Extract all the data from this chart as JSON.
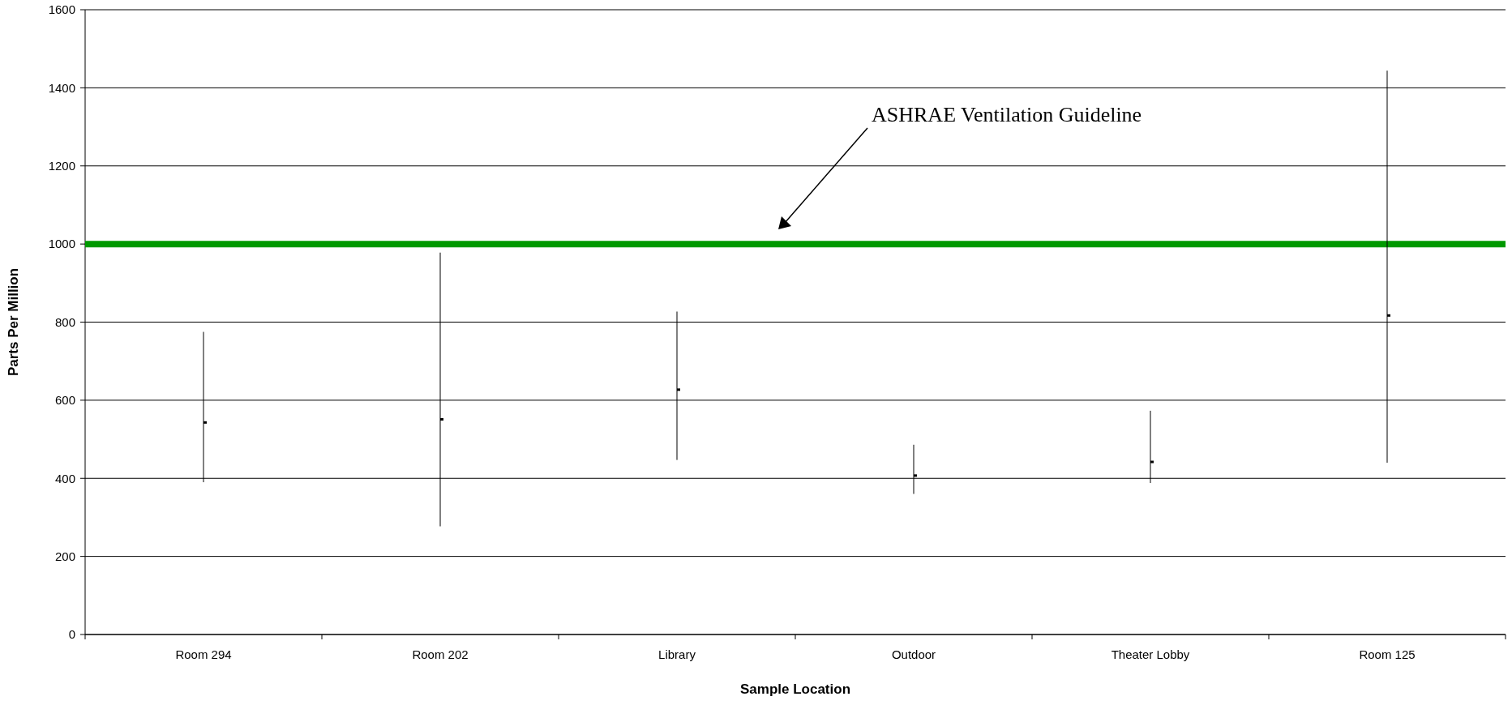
{
  "chart_data": {
    "type": "scatter",
    "xlabel": "Sample Location",
    "ylabel": "Parts Per Million",
    "categories": [
      "Room 294",
      "Room 202",
      "Library",
      "Outdoor",
      "Theater Lobby",
      "Room 125"
    ],
    "values": [
      543,
      551,
      627,
      407,
      442,
      817
    ],
    "errors": [
      [
        390,
        775
      ],
      [
        277,
        978
      ],
      [
        447,
        827
      ],
      [
        360,
        486
      ],
      [
        388,
        573
      ],
      [
        440,
        1444
      ]
    ],
    "color": "#000000",
    "ylim": [
      0,
      1600
    ],
    "yticks": [
      0,
      200,
      400,
      600,
      800,
      1000,
      1200,
      1400,
      1600
    ],
    "grid": "y",
    "ref_lines": [
      {
        "axis": "y",
        "value": 1000,
        "color": "#009900"
      }
    ],
    "annotations": [
      "ASHRAE Ventilation Guideline"
    ]
  }
}
